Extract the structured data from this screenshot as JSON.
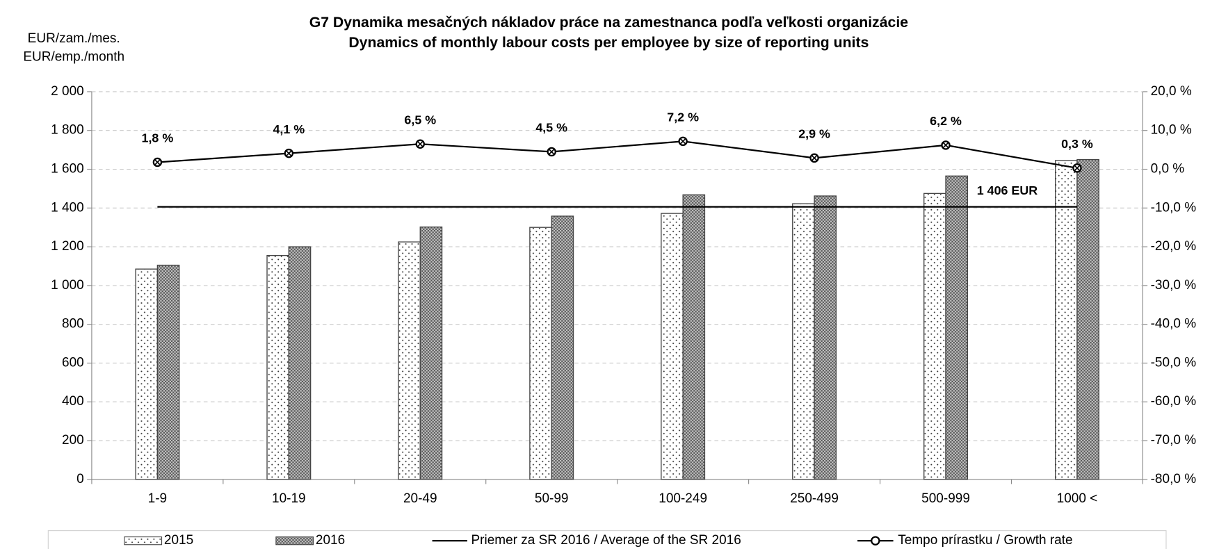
{
  "chart_data": {
    "type": "bar",
    "title": "G7 Dynamika mesačných nákladov práce na zamestnanca podľa veľkosti organizácie",
    "subtitle": "Dynamics of monthly labour costs per employee by size of reporting units",
    "y_label": [
      "EUR/zam./mes.",
      "EUR/emp./month"
    ],
    "categories": [
      "1-9",
      "10-19",
      "20-49",
      "50-99",
      "100-249",
      "250-499",
      "500-999",
      "1000 <"
    ],
    "series": [
      {
        "name": "2015",
        "type": "bar",
        "pattern": "dots",
        "color": "#ffffff",
        "values": [
          1085,
          1155,
          1225,
          1300,
          1372,
          1422,
          1475,
          1645
        ]
      },
      {
        "name": "2016",
        "type": "bar",
        "pattern": "crosshatch",
        "color": "#4a4a4a",
        "values": [
          1105,
          1200,
          1302,
          1358,
          1468,
          1462,
          1565,
          1650
        ]
      },
      {
        "name": "Tempo prírastku / Growth rate",
        "type": "line",
        "axis": "y2",
        "color": "#000000",
        "values": [
          1.8,
          4.1,
          6.5,
          4.5,
          7.2,
          2.9,
          6.2,
          0.3
        ],
        "value_labels": [
          "1,8 %",
          "4,1 %",
          "6,5 %",
          "4,5 %",
          "7,2 %",
          "2,9 %",
          "6,2 %",
          "0,3 %"
        ]
      }
    ],
    "average": {
      "name": "Priemer za SR 2016 / Average of the SR 2016",
      "value": 1406,
      "value_label": "1 406 EUR",
      "color": "#000000"
    },
    "ylim": [
      0,
      2000
    ],
    "yticks": [
      0,
      200,
      400,
      600,
      800,
      {
        "value": 1000,
        "label": "1 000"
      },
      {
        "value": 1200,
        "label": "1 200"
      },
      {
        "value": 1400,
        "label": "1 400"
      },
      {
        "value": 1600,
        "label": "1 600"
      },
      {
        "value": 1800,
        "label": "1 800"
      },
      {
        "value": 2000,
        "label": "2 000"
      }
    ],
    "y2lim": [
      -80,
      20
    ],
    "y2ticks": [
      {
        "value": -80,
        "label": "-80,0 %"
      },
      {
        "value": -70,
        "label": "-70,0 %"
      },
      {
        "value": -60,
        "label": "-60,0 %"
      },
      {
        "value": -50,
        "label": "-50,0 %"
      },
      {
        "value": -40,
        "label": "-40,0 %"
      },
      {
        "value": -30,
        "label": "-30,0 %"
      },
      {
        "value": -20,
        "label": "-20,0 %"
      },
      {
        "value": -10,
        "label": "-10,0 %"
      },
      {
        "value": 0,
        "label": "0,0 %"
      },
      {
        "value": 10,
        "label": "10,0 %"
      },
      {
        "value": 20,
        "label": "20,0 %"
      }
    ],
    "grid": true,
    "legend": "bottom"
  }
}
